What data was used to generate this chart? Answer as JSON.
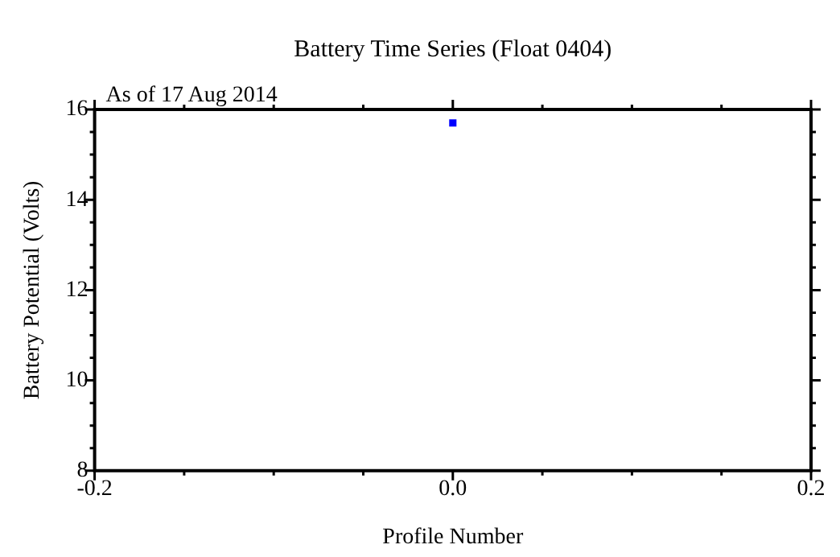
{
  "chart_data": {
    "type": "scatter",
    "title": "Battery Time Series (Float 0404)",
    "subtitle": "As of 17 Aug 2014",
    "xlabel": "Profile Number",
    "ylabel": "Battery Potential (Volts)",
    "series": [
      {
        "color": "#0000ff",
        "x": [
          0
        ],
        "values": [
          15.7
        ]
      }
    ],
    "marker": "square",
    "grid": false,
    "legend": false,
    "xlim": [
      -0.2,
      0.2
    ],
    "xticks": [
      -0.2,
      {
        "value": -0.15,
        "label": null
      },
      {
        "value": -0.1,
        "label": null
      },
      {
        "value": -0.05,
        "label": null
      },
      {
        "value": 0,
        "label": "0.0"
      },
      {
        "value": 0.05,
        "label": null
      },
      {
        "value": 0.1,
        "label": null
      },
      {
        "value": 0.15,
        "label": null
      },
      0.2
    ],
    "ylim": [
      8,
      16
    ],
    "yticks": [
      8,
      {
        "value": 8.5,
        "label": null
      },
      {
        "value": 9,
        "label": null
      },
      {
        "value": 9.5,
        "label": null
      },
      10,
      {
        "value": 10.5,
        "label": null
      },
      {
        "value": 11,
        "label": null
      },
      {
        "value": 11.5,
        "label": null
      },
      12,
      {
        "value": 12.5,
        "label": null
      },
      {
        "value": 13,
        "label": null
      },
      {
        "value": 13.5,
        "label": null
      },
      14,
      {
        "value": 14.5,
        "label": null
      },
      {
        "value": 15,
        "label": null
      },
      {
        "value": 15.5,
        "label": null
      },
      16
    ]
  }
}
